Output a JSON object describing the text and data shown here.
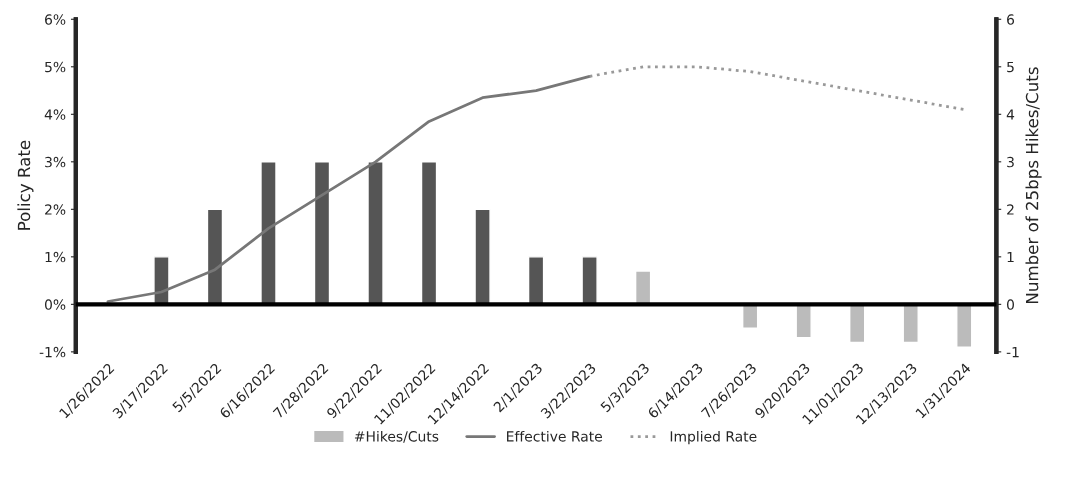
{
  "chart_data": {
    "type": "bar",
    "categories": [
      "1/26/2022",
      "3/17/2022",
      "5/5/2022",
      "6/16/2022",
      "7/28/2022",
      "9/22/2022",
      "11/02/2022",
      "12/14/2022",
      "2/1/2023",
      "3/22/2023",
      "5/3/2023",
      "6/14/2023",
      "7/26/2023",
      "9/20/2023",
      "11/01/2023",
      "12/13/2023",
      "1/31/2024"
    ],
    "series": [
      {
        "name": "#Hikes/Cuts",
        "axis": "y2",
        "color": "#bbbbbb",
        "colors": [
          "#555555",
          "#555555",
          "#555555",
          "#555555",
          "#555555",
          "#555555",
          "#555555",
          "#555555",
          "#555555",
          "#555555",
          "#bbbbbb",
          "#bbbbbb",
          "#bbbbbb",
          "#bbbbbb",
          "#bbbbbb",
          "#bbbbbb",
          "#bbbbbb"
        ],
        "values": [
          null,
          1,
          2,
          3,
          3,
          3,
          3,
          2,
          1,
          1,
          0.7,
          null,
          -0.5,
          -0.7,
          -0.8,
          -0.8,
          -0.9
        ]
      },
      {
        "name": "Effective Rate",
        "type": "line",
        "color": "#777777",
        "line_style": "solid",
        "values": [
          0.06,
          0.26,
          0.73,
          1.6,
          2.3,
          3.0,
          3.85,
          4.35,
          4.5,
          4.8,
          null,
          null,
          null,
          null,
          null,
          null,
          null
        ]
      },
      {
        "name": "Implied Rate",
        "type": "line",
        "color": "#999999",
        "line_style": "dotted",
        "values": [
          null,
          null,
          null,
          null,
          null,
          null,
          null,
          null,
          null,
          4.8,
          5.0,
          5.0,
          4.9,
          4.7,
          4.5,
          4.3,
          4.1
        ]
      }
    ],
    "ylabel": "Policy Rate",
    "y2label": "Number of 25bps Hikes/Cuts",
    "ylim": [
      -1,
      6
    ],
    "yticks": [
      {
        "value": -1,
        "label": "-1%"
      },
      {
        "value": 0,
        "label": "0%"
      },
      {
        "value": 1,
        "label": "1%"
      },
      {
        "value": 2,
        "label": "2%"
      },
      {
        "value": 3,
        "label": "3%"
      },
      {
        "value": 4,
        "label": "4%"
      },
      {
        "value": 5,
        "label": "5%"
      },
      {
        "value": 6,
        "label": "6%"
      }
    ],
    "y2lim": [
      -1,
      6
    ],
    "y2ticks": [
      -1,
      0,
      1,
      2,
      3,
      4,
      5,
      6
    ],
    "ref_lines": [
      {
        "axis": "y",
        "value": 0,
        "color": "#000000"
      }
    ],
    "grid": false,
    "legend": "bottom",
    "marker": "none"
  }
}
